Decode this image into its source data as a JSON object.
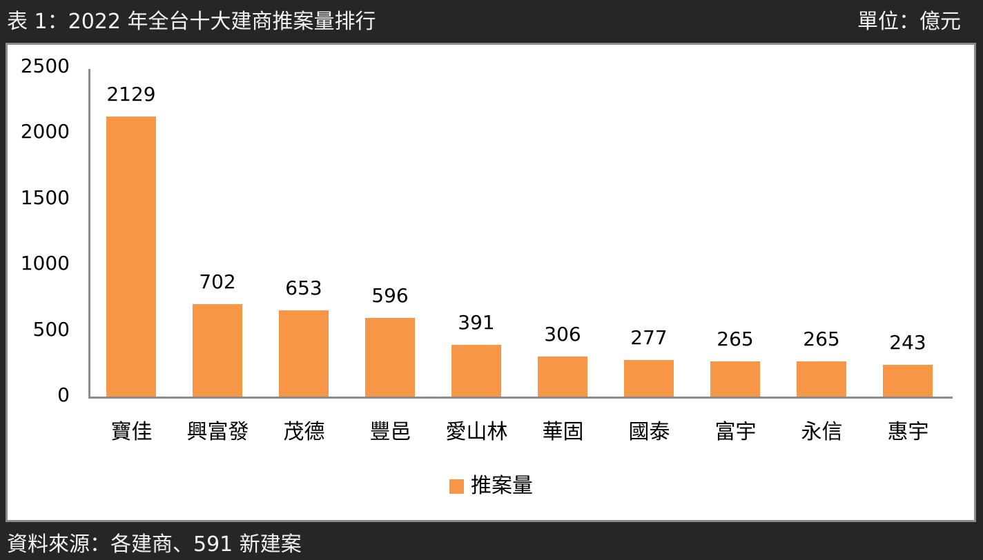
{
  "header": {
    "title": "表 1：2022 年全台十大建商推案量排行",
    "unit": "單位：億元"
  },
  "footer": {
    "source": "資料來源：各建商、591 新建案"
  },
  "colors": {
    "bar": "#f79646",
    "axis": "#8c8c8c",
    "background": "#262626",
    "panel": "#ffffff"
  },
  "chart_data": {
    "type": "bar",
    "title": "2022 年全台十大建商推案量排行",
    "xlabel": "",
    "ylabel": "億元",
    "ylim": [
      0,
      2500
    ],
    "yticks": [
      0,
      500,
      1000,
      1500,
      2000,
      2500
    ],
    "grid": false,
    "legend_position": "bottom",
    "categories": [
      "寶佳",
      "興富發",
      "茂德",
      "豐邑",
      "愛山林",
      "華固",
      "國泰",
      "富宇",
      "永信",
      "惠宇"
    ],
    "series": [
      {
        "name": "推案量",
        "color": "#f79646",
        "values": [
          2129,
          702,
          653,
          596,
          391,
          306,
          277,
          265,
          265,
          243
        ]
      }
    ]
  }
}
